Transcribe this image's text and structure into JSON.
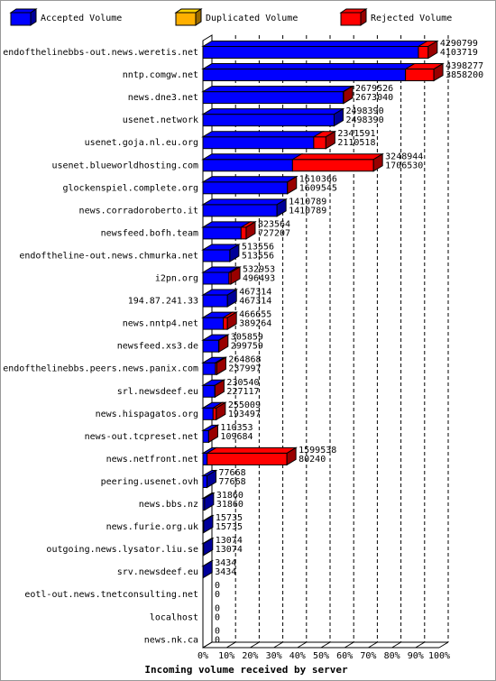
{
  "chart_data": {
    "type": "bar3d",
    "title": "Incoming volume received by server",
    "categories": [
      "endofthelinebbs-out.news.weretis.net",
      "nntp.comgw.net",
      "news.dne3.net",
      "usenet.network",
      "usenet.goja.nl.eu.org",
      "usenet.blueworldhosting.com",
      "glockenspiel.complete.org",
      "news.corradoroberto.it",
      "newsfeed.bofh.team",
      "endoftheline-out.news.chmurka.net",
      "i2pn.org",
      "194.87.241.33",
      "news.nntp4.net",
      "newsfeed.xs3.de",
      "endofthelinebbs.peers.news.panix.com",
      "srl.newsdeef.eu",
      "news.hispagatos.org",
      "news-out.tcpreset.net",
      "news.netfront.net",
      "peering.usenet.ovh",
      "news.bbs.nz",
      "news.furie.org.uk",
      "outgoing.news.lysator.liu.se",
      "srv.newsdeef.eu",
      "eotl-out.news.tnetconsulting.net",
      "localhost",
      "news.nk.ca"
    ],
    "totals": [
      4290799,
      4398277,
      2679526,
      2498390,
      2341591,
      3248944,
      1610366,
      1410789,
      823564,
      513556,
      532953,
      467314,
      466655,
      305859,
      264868,
      230540,
      255009,
      110353,
      1599538,
      77668,
      31860,
      15735,
      13074,
      3434,
      0,
      0,
      0
    ],
    "series": [
      {
        "name": "Accepted Volume",
        "color": "#0000ff",
        "values": [
          4103719,
          3858200,
          2673040,
          2498390,
          2110518,
          1706530,
          1609545,
          1410789,
          727207,
          513556,
          496493,
          467314,
          389264,
          299759,
          237997,
          227117,
          193497,
          109684,
          80240,
          77668,
          31860,
          15735,
          13074,
          3434,
          0,
          0,
          0
        ]
      },
      {
        "name": "Duplicated Volume",
        "color": "#ffb000",
        "values": [
          0,
          0,
          0,
          0,
          0,
          0,
          0,
          0,
          0,
          0,
          0,
          0,
          0,
          0,
          0,
          0,
          0,
          0,
          0,
          0,
          0,
          0,
          0,
          0,
          0,
          0,
          0
        ]
      },
      {
        "name": "Rejected Volume",
        "color": "#ff0000",
        "values": [
          187080,
          540077,
          6486,
          0,
          231073,
          1542414,
          821,
          0,
          96357,
          0,
          36460,
          0,
          77391,
          6100,
          26871,
          3423,
          61512,
          669,
          1519298,
          0,
          0,
          0,
          0,
          0,
          0,
          0,
          0
        ]
      }
    ],
    "xlim": [
      0,
      4500000
    ],
    "xticks": [
      {
        "value": 0,
        "label": "0%"
      },
      {
        "value": 450000,
        "label": "10%"
      },
      {
        "value": 900000,
        "label": "20%"
      },
      {
        "value": 1350000,
        "label": "30%"
      },
      {
        "value": 1800000,
        "label": "40%"
      },
      {
        "value": 2250000,
        "label": "50%"
      },
      {
        "value": 2700000,
        "label": "60%"
      },
      {
        "value": 3150000,
        "label": "70%"
      },
      {
        "value": 3600000,
        "label": "80%"
      },
      {
        "value": 4050000,
        "label": "90%"
      },
      {
        "value": 4500000,
        "label": "100%"
      }
    ],
    "grid": true
  }
}
